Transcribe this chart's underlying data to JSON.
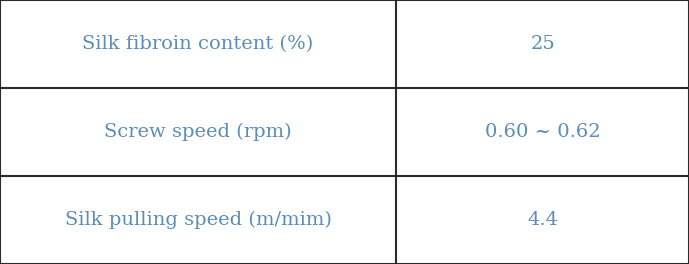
{
  "rows": [
    {
      "label": "Silk fibroin content (%)",
      "value": "25"
    },
    {
      "label": "Screw speed (rpm)",
      "value": "0.60 ~ 0.62"
    },
    {
      "label": "Silk pulling speed (m/mim)",
      "value": "4.4"
    }
  ],
  "text_color": "#5b8db8",
  "border_color": "#2a2a2a",
  "background_color": "#ffffff",
  "font_size": 14,
  "col_split": 0.575
}
